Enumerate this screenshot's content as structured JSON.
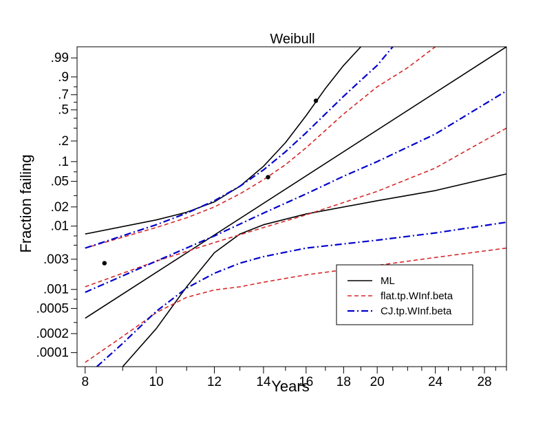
{
  "chart_data": {
    "type": "line",
    "title": "Weibull",
    "xlabel": "Years",
    "ylabel": "Fraction failing",
    "x_scale": "log",
    "y_scale": "weibull",
    "xlim": [
      7.8,
      30.0
    ],
    "ylim": [
      6e-05,
      0.999
    ],
    "x_ticks": [
      {
        "value": 8,
        "label": "8"
      },
      {
        "value": 10,
        "label": "10"
      },
      {
        "value": 12,
        "label": "12"
      },
      {
        "value": 14,
        "label": "14"
      },
      {
        "value": 16,
        "label": "16"
      },
      {
        "value": 18,
        "label": "18"
      },
      {
        "value": 20,
        "label": "20"
      },
      {
        "value": 24,
        "label": "24"
      },
      {
        "value": 28,
        "label": "28"
      }
    ],
    "x_minor_ticks": [
      9,
      11,
      13,
      15,
      17,
      19,
      21,
      22,
      23,
      25,
      26,
      27,
      29,
      30
    ],
    "y_ticks": [
      {
        "value": 0.99,
        "label": ".99"
      },
      {
        "value": 0.9,
        "label": ".9"
      },
      {
        "value": 0.7,
        "label": ".7"
      },
      {
        "value": 0.5,
        "label": ".5"
      },
      {
        "value": 0.2,
        "label": ".2"
      },
      {
        "value": 0.1,
        "label": ".1"
      },
      {
        "value": 0.05,
        "label": ".05"
      },
      {
        "value": 0.02,
        "label": ".02"
      },
      {
        "value": 0.01,
        "label": ".01"
      },
      {
        "value": 0.003,
        "label": ".003"
      },
      {
        "value": 0.001,
        "label": ".001"
      },
      {
        "value": 0.0005,
        "label": ".0005"
      },
      {
        "value": 0.0002,
        "label": ".0002"
      },
      {
        "value": 0.0001,
        "label": ".0001"
      }
    ],
    "y_minor_ticks": [
      0.8,
      0.6,
      0.4,
      0.3,
      0.07,
      0.03,
      0.007,
      0.005,
      0.002,
      0.0007,
      0.0003
    ],
    "grid": false,
    "legend": {
      "position": "bottom-right",
      "entries": [
        {
          "label": "ML",
          "color": "#000000",
          "dash": "solid"
        },
        {
          "label": "flat.tp.WInf.beta",
          "color": "#d62728",
          "dash": "dash"
        },
        {
          "label": "CJ.tp.WInf.beta",
          "color": "#0000cc",
          "dash": "dashdot"
        }
      ]
    },
    "points": [
      {
        "x": 8.5,
        "y": 0.0026
      },
      {
        "x": 14.2,
        "y": 0.058
      },
      {
        "x": 16.5,
        "y": 0.62
      }
    ],
    "series": [
      {
        "name": "ML",
        "role": "estimate",
        "color": "#000000",
        "dash": "solid",
        "x": [
          8,
          30
        ],
        "y": [
          0.00035,
          0.999
        ]
      },
      {
        "name": "ML",
        "role": "upper",
        "color": "#000000",
        "dash": "solid",
        "x": [
          8,
          10,
          11,
          12,
          13,
          14,
          15,
          16,
          17,
          18,
          19
        ],
        "y": [
          0.0075,
          0.0125,
          0.0165,
          0.024,
          0.042,
          0.085,
          0.19,
          0.43,
          0.78,
          0.97,
          0.999
        ]
      },
      {
        "name": "ML",
        "role": "lower",
        "color": "#000000",
        "dash": "solid",
        "x": [
          9,
          10,
          11,
          12,
          13,
          14,
          16,
          20,
          24,
          30
        ],
        "y": [
          6e-05,
          0.00024,
          0.0011,
          0.0038,
          0.0075,
          0.0105,
          0.0155,
          0.025,
          0.036,
          0.065
        ]
      },
      {
        "name": "flat.tp.WInf.beta",
        "role": "upper",
        "color": "#d62728",
        "dash": "dash",
        "x": [
          8,
          10,
          11,
          12,
          13,
          14,
          15,
          16,
          17,
          18,
          20,
          22,
          24
        ],
        "y": [
          0.0045,
          0.0095,
          0.0135,
          0.02,
          0.032,
          0.053,
          0.09,
          0.16,
          0.28,
          0.45,
          0.8,
          0.96,
          0.999
        ]
      },
      {
        "name": "flat.tp.WInf.beta",
        "role": "middle",
        "color": "#d62728",
        "dash": "dash",
        "x": [
          8,
          10,
          12,
          14,
          16,
          20,
          24,
          30
        ],
        "y": [
          0.0011,
          0.0028,
          0.0055,
          0.0095,
          0.015,
          0.035,
          0.08,
          0.3
        ]
      },
      {
        "name": "flat.tp.WInf.beta",
        "role": "lower",
        "color": "#d62728",
        "dash": "dash",
        "x": [
          8,
          9,
          10,
          11,
          12,
          13,
          14,
          16,
          20,
          24,
          30
        ],
        "y": [
          7e-05,
          0.00018,
          0.00043,
          0.00075,
          0.00098,
          0.0011,
          0.0013,
          0.0017,
          0.0024,
          0.0032,
          0.0045
        ]
      },
      {
        "name": "CJ.tp.WInf.beta",
        "role": "upper",
        "color": "#0000cc",
        "dash": "dashdot",
        "x": [
          8,
          10,
          11,
          12,
          13,
          14,
          15,
          16,
          17,
          18,
          19,
          20,
          21
        ],
        "y": [
          0.0045,
          0.0105,
          0.016,
          0.025,
          0.042,
          0.075,
          0.14,
          0.26,
          0.45,
          0.68,
          0.87,
          0.97,
          0.999
        ]
      },
      {
        "name": "CJ.tp.WInf.beta",
        "role": "middle",
        "color": "#0000cc",
        "dash": "dashdot",
        "x": [
          8,
          10,
          12,
          14,
          16,
          18,
          20,
          24,
          30
        ],
        "y": [
          0.0009,
          0.0028,
          0.007,
          0.016,
          0.032,
          0.06,
          0.1,
          0.25,
          0.75
        ]
      },
      {
        "name": "CJ.tp.WInf.beta",
        "role": "lower",
        "color": "#0000cc",
        "dash": "dashdot",
        "x": [
          8.3,
          9,
          10,
          11,
          12,
          13,
          14,
          16,
          20,
          24,
          30
        ],
        "y": [
          6e-05,
          0.00014,
          0.00045,
          0.00105,
          0.0018,
          0.0026,
          0.0033,
          0.0045,
          0.006,
          0.0078,
          0.0115
        ]
      }
    ]
  }
}
